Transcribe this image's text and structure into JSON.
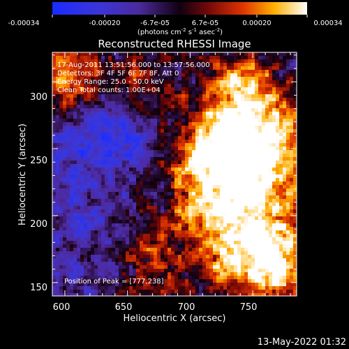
{
  "colorbar": {
    "ticks": [
      "-0.00034",
      "-0.00020",
      "-6.7e-05",
      "6.7e-05",
      "0.00020",
      "0.00034"
    ],
    "units_main": "(photons cm",
    "units_exp1": "-2",
    "units_s": " s",
    "units_exp2": "-1",
    "units_asec": " asec",
    "units_exp3": "-2",
    "units_close": ")"
  },
  "plot": {
    "title": "Reconstructed RHESSI Image",
    "xlabel": "Heliocentric X (arcsec)",
    "ylabel": "Heliocentric Y (arcsec)",
    "xticks": [
      "600",
      "650",
      "700",
      "750"
    ],
    "yticks": [
      "150",
      "200",
      "250",
      "300"
    ],
    "annotations": [
      "17-Aug-2011 13:51:56.000 to 13:57:56.000",
      "Detectors: 3F 4F 5F 6F 7F 8F, Att 0",
      "Energy Range: 25.0 - 50.0 keV",
      "Clean    Total counts: 1.00E+04"
    ],
    "peak_label": "Position of Peak = [777,238]"
  },
  "footer": {
    "timestamp": "13-May-2022 01:32"
  },
  "colors": {
    "background": "#000000",
    "foreground": "#ffffff"
  },
  "image_data": {
    "xlim": [
      590,
      785
    ],
    "ylim": [
      140,
      322
    ],
    "peak": [
      777,
      238
    ],
    "bright_regions": [
      {
        "x": 760,
        "y": 255,
        "strength": 1.0,
        "spread": 30
      },
      {
        "x": 720,
        "y": 245,
        "strength": 0.8,
        "spread": 28
      },
      {
        "x": 765,
        "y": 165,
        "strength": 1.0,
        "spread": 28
      },
      {
        "x": 730,
        "y": 195,
        "strength": 0.65,
        "spread": 30
      },
      {
        "x": 605,
        "y": 300,
        "strength": 0.8,
        "spread": 20
      },
      {
        "x": 660,
        "y": 300,
        "strength": 0.45,
        "spread": 20
      },
      {
        "x": 740,
        "y": 300,
        "strength": 0.55,
        "spread": 18
      },
      {
        "x": 670,
        "y": 165,
        "strength": 0.4,
        "spread": 22
      }
    ],
    "dark_regions": [
      {
        "x": 620,
        "y": 265,
        "strength": 0.8,
        "spread": 22
      },
      {
        "x": 650,
        "y": 260,
        "strength": 0.5,
        "spread": 20
      },
      {
        "x": 610,
        "y": 200,
        "strength": 0.35,
        "spread": 22
      }
    ]
  }
}
